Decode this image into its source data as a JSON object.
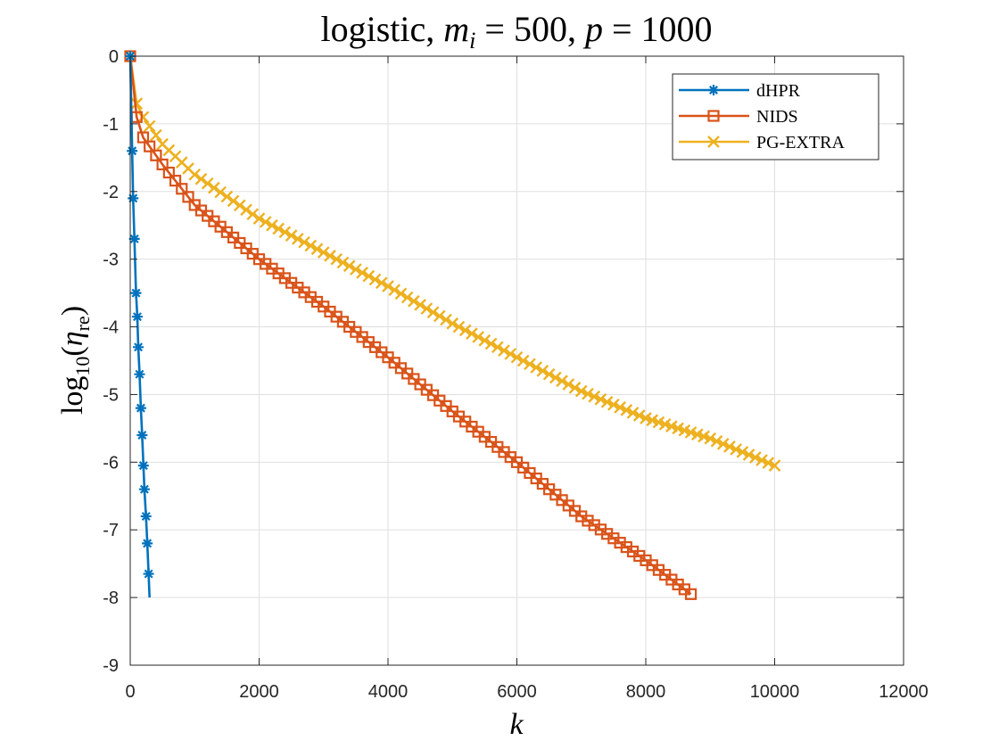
{
  "chart_data": {
    "type": "line",
    "title": {
      "prefix": "logistic, ",
      "m_symbol": "m",
      "m_subscript": "i",
      "m_value": " = 500, ",
      "p_symbol": "p",
      "p_value": " = 1000"
    },
    "xlabel": "k",
    "ylabel": {
      "func": "log",
      "base": "10",
      "open": "(",
      "symbol": "η",
      "subscript": "re",
      "close": ")"
    },
    "xlim": [
      0,
      12000
    ],
    "ylim": [
      -9,
      0
    ],
    "x_ticks": [
      0,
      2000,
      4000,
      6000,
      8000,
      10000,
      12000
    ],
    "x_tick_labels": [
      "0",
      "2000",
      "4000",
      "6000",
      "8000",
      "10000",
      "12000"
    ],
    "y_ticks": [
      0,
      -1,
      -2,
      -3,
      -4,
      -5,
      -6,
      -7,
      -8,
      -9
    ],
    "y_tick_labels": [
      "0",
      "-1",
      "-2",
      "-3",
      "-4",
      "-5",
      "-6",
      "-7",
      "-8",
      "-9"
    ],
    "grid": true,
    "legend_position": "top-right",
    "series": [
      {
        "name": "dHPR",
        "color": "#0072BD",
        "marker": "asterisk",
        "line": [
          [
            0,
            0
          ],
          [
            30,
            -1.4
          ],
          [
            45,
            -2.1
          ],
          [
            65,
            -2.7
          ],
          [
            90,
            -3.5
          ],
          [
            110,
            -3.85
          ],
          [
            125,
            -4.3
          ],
          [
            145,
            -4.7
          ],
          [
            165,
            -5.2
          ],
          [
            185,
            -5.6
          ],
          [
            205,
            -6.05
          ],
          [
            220,
            -6.4
          ],
          [
            245,
            -6.8
          ],
          [
            265,
            -7.2
          ],
          [
            285,
            -7.65
          ],
          [
            300,
            -8.0
          ]
        ],
        "markers": [
          [
            0,
            0
          ],
          [
            30,
            -1.4
          ],
          [
            45,
            -2.1
          ],
          [
            65,
            -2.7
          ],
          [
            90,
            -3.5
          ],
          [
            110,
            -3.85
          ],
          [
            125,
            -4.3
          ],
          [
            145,
            -4.7
          ],
          [
            165,
            -5.2
          ],
          [
            185,
            -5.6
          ],
          [
            205,
            -6.05
          ],
          [
            220,
            -6.4
          ],
          [
            245,
            -6.8
          ],
          [
            265,
            -7.2
          ],
          [
            285,
            -7.65
          ]
        ]
      },
      {
        "name": "NIDS",
        "color": "#D95319",
        "marker": "square",
        "line": [
          [
            0,
            0
          ],
          [
            100,
            -0.9
          ],
          [
            200,
            -1.2
          ],
          [
            500,
            -1.6
          ],
          [
            1000,
            -2.2
          ],
          [
            2000,
            -3.0
          ],
          [
            3000,
            -3.7
          ],
          [
            4000,
            -4.45
          ],
          [
            5000,
            -5.25
          ],
          [
            6000,
            -6.0
          ],
          [
            7000,
            -6.8
          ],
          [
            8000,
            -7.45
          ],
          [
            8700,
            -7.95
          ]
        ],
        "marker_step": 100,
        "marker_range": [
          100,
          8700
        ]
      },
      {
        "name": "PG-EXTRA",
        "color": "#EDB120",
        "marker": "x",
        "line": [
          [
            0,
            0
          ],
          [
            100,
            -0.7
          ],
          [
            200,
            -0.9
          ],
          [
            500,
            -1.3
          ],
          [
            1000,
            -1.75
          ],
          [
            2000,
            -2.4
          ],
          [
            3000,
            -2.9
          ],
          [
            4000,
            -3.4
          ],
          [
            5000,
            -3.95
          ],
          [
            6000,
            -4.45
          ],
          [
            7000,
            -4.95
          ],
          [
            8000,
            -5.35
          ],
          [
            9000,
            -5.65
          ],
          [
            10000,
            -6.05
          ]
        ],
        "marker_step": 100,
        "marker_range": [
          100,
          10000
        ]
      }
    ]
  }
}
